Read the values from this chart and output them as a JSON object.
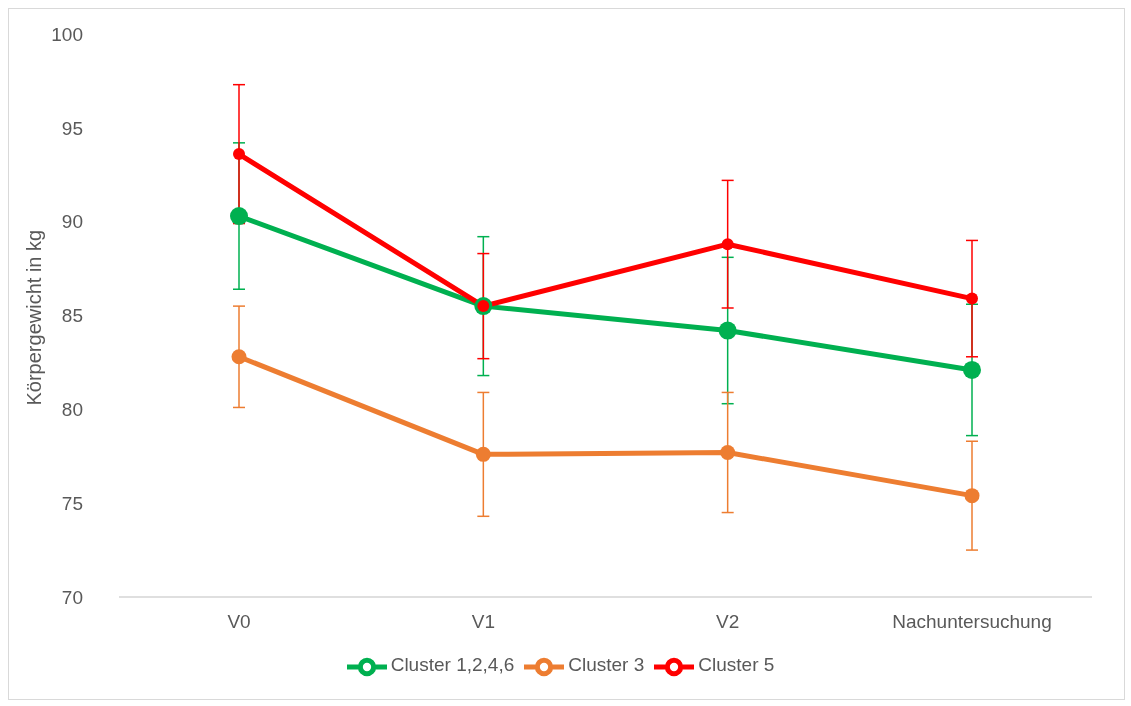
{
  "chart_data": {
    "type": "line",
    "ylabel": "Körpergewicht in kg",
    "categories": [
      "V0",
      "V1",
      "V2",
      "Nachuntersuchung"
    ],
    "series": [
      {
        "name": "Cluster 1,2,4,6",
        "color": "#00b050",
        "values": [
          90.3,
          85.5,
          84.2,
          82.1
        ],
        "errors": [
          3.9,
          3.7,
          3.9,
          3.5
        ]
      },
      {
        "name": "Cluster 3",
        "color": "#ed7d31",
        "values": [
          82.8,
          77.6,
          77.7,
          75.4
        ],
        "errors": [
          2.7,
          3.3,
          3.2,
          2.9
        ]
      },
      {
        "name": "Cluster 5",
        "color": "#ff0000",
        "values": [
          93.6,
          85.5,
          88.8,
          85.9
        ],
        "errors": [
          3.7,
          2.8,
          3.4,
          3.1
        ]
      }
    ],
    "ylim": [
      70,
      100
    ],
    "yticks": [
      70,
      75,
      80,
      85,
      90,
      95,
      100
    ],
    "grid": false,
    "legend": "bottom",
    "marker": "circle",
    "line_style": "solid"
  }
}
